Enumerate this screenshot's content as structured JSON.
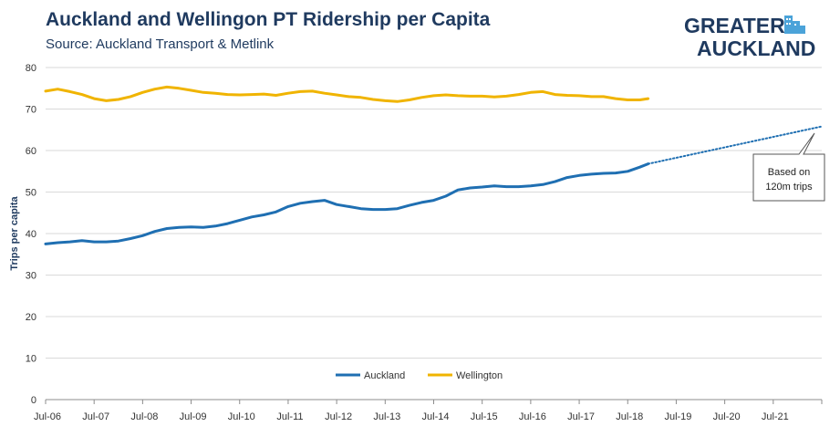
{
  "title": "Auckland and Wellingon PT Ridership per Capita",
  "subtitle": "Source: Auckland Transport & Metlink",
  "logo": {
    "line1": "GREATER",
    "line2": "AUCKLAND"
  },
  "annotation": {
    "line1": "Based on",
    "line2": "120m trips"
  },
  "colors": {
    "auckland": "#1f6fb2",
    "wellington": "#f0b400",
    "text": "#1f3a5f",
    "grid": "#d9d9d9"
  },
  "chart_data": {
    "type": "line",
    "ylabel": "Trips per capita",
    "xlabel": "",
    "ylim": [
      0,
      80
    ],
    "yticks": [
      0,
      10,
      20,
      30,
      40,
      50,
      60,
      70,
      80
    ],
    "x_range": [
      2006.5,
      2022.5
    ],
    "xtick_labels": [
      "Jul-06",
      "Jul-07",
      "Jul-08",
      "Jul-09",
      "Jul-10",
      "Jul-11",
      "Jul-12",
      "Jul-13",
      "Jul-14",
      "Jul-15",
      "Jul-16",
      "Jul-17",
      "Jul-18",
      "Jul-19",
      "Jul-20",
      "Jul-21"
    ],
    "xtick_values": [
      2006.5,
      2007.5,
      2008.5,
      2009.5,
      2010.5,
      2011.5,
      2012.5,
      2013.5,
      2014.5,
      2015.5,
      2016.5,
      2017.5,
      2018.5,
      2019.5,
      2020.5,
      2021.5
    ],
    "grid": "horizontal",
    "legend": "bottom-center",
    "series": [
      {
        "name": "Auckland",
        "color_key": "auckland",
        "x": [
          2006.5,
          2006.75,
          2007.0,
          2007.25,
          2007.5,
          2007.75,
          2008.0,
          2008.25,
          2008.5,
          2008.75,
          2009.0,
          2009.25,
          2009.5,
          2009.75,
          2010.0,
          2010.25,
          2010.5,
          2010.75,
          2011.0,
          2011.25,
          2011.5,
          2011.75,
          2012.0,
          2012.25,
          2012.5,
          2012.75,
          2013.0,
          2013.25,
          2013.5,
          2013.75,
          2014.0,
          2014.25,
          2014.5,
          2014.75,
          2015.0,
          2015.25,
          2015.5,
          2015.75,
          2016.0,
          2016.25,
          2016.5,
          2016.75,
          2017.0,
          2017.25,
          2017.5,
          2017.75,
          2018.0,
          2018.25,
          2018.5,
          2018.75,
          2018.92
        ],
        "y": [
          37.5,
          37.8,
          38.0,
          38.3,
          38.0,
          38.0,
          38.2,
          38.8,
          39.5,
          40.5,
          41.2,
          41.5,
          41.6,
          41.5,
          41.8,
          42.4,
          43.2,
          44.0,
          44.5,
          45.2,
          46.5,
          47.3,
          47.7,
          48.0,
          47.0,
          46.5,
          46.0,
          45.8,
          45.8,
          46.0,
          46.8,
          47.5,
          48.0,
          49.0,
          50.5,
          51.0,
          51.2,
          51.5,
          51.3,
          51.3,
          51.5,
          51.8,
          52.5,
          53.5,
          54.0,
          54.3,
          54.5,
          54.6,
          55.0,
          56.0,
          56.8
        ]
      },
      {
        "name": "Wellington",
        "color_key": "wellington",
        "x": [
          2006.5,
          2006.75,
          2007.0,
          2007.25,
          2007.5,
          2007.75,
          2008.0,
          2008.25,
          2008.5,
          2008.75,
          2009.0,
          2009.25,
          2009.5,
          2009.75,
          2010.0,
          2010.25,
          2010.5,
          2010.75,
          2011.0,
          2011.25,
          2011.5,
          2011.75,
          2012.0,
          2012.25,
          2012.5,
          2012.75,
          2013.0,
          2013.25,
          2013.5,
          2013.75,
          2014.0,
          2014.25,
          2014.5,
          2014.75,
          2015.0,
          2015.25,
          2015.5,
          2015.75,
          2016.0,
          2016.25,
          2016.5,
          2016.75,
          2017.0,
          2017.25,
          2017.5,
          2017.75,
          2018.0,
          2018.25,
          2018.5,
          2018.75,
          2018.92
        ],
        "y": [
          74.3,
          74.8,
          74.2,
          73.5,
          72.5,
          72.0,
          72.3,
          73.0,
          74.0,
          74.8,
          75.3,
          75.0,
          74.5,
          74.0,
          73.8,
          73.5,
          73.4,
          73.5,
          73.6,
          73.3,
          73.8,
          74.2,
          74.3,
          73.8,
          73.4,
          73.0,
          72.8,
          72.3,
          72.0,
          71.8,
          72.2,
          72.8,
          73.2,
          73.4,
          73.2,
          73.1,
          73.1,
          72.9,
          73.1,
          73.5,
          74.0,
          74.2,
          73.5,
          73.3,
          73.2,
          73.0,
          73.0,
          72.5,
          72.2,
          72.2,
          72.5
        ]
      },
      {
        "name": "",
        "color_key": "auckland",
        "style": "dotted",
        "x": [
          2018.92,
          2022.5
        ],
        "y": [
          56.8,
          65.8
        ]
      }
    ]
  }
}
